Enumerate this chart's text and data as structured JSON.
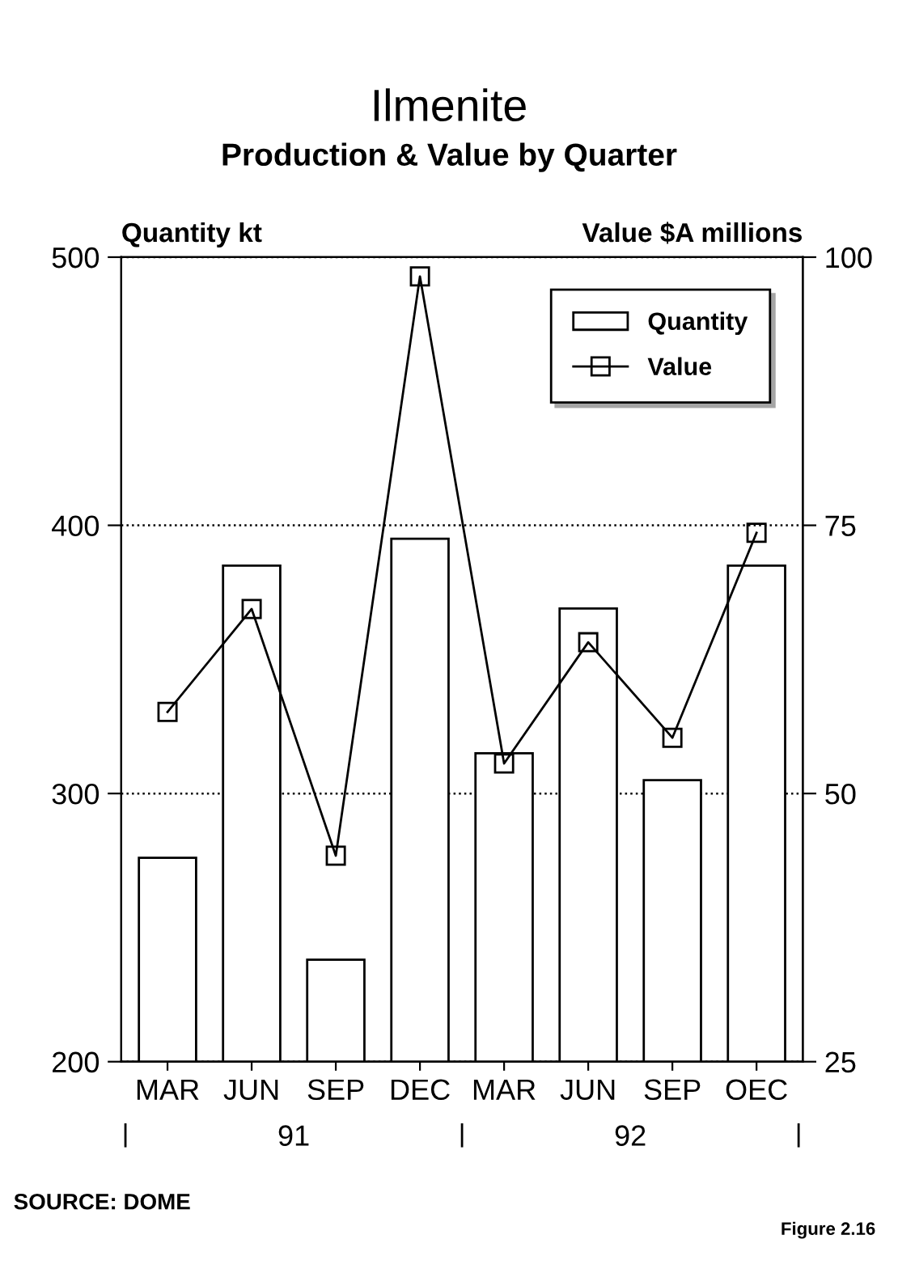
{
  "chart_data": {
    "type": "bar",
    "title": "Ilmenite",
    "subtitle": "Production & Value by Quarter",
    "ylabel": "Quantity kt",
    "y2label": "Value $A millions",
    "categories": [
      "MAR",
      "JUN",
      "SEP",
      "DEC",
      "MAR",
      "JUN",
      "SEP",
      "OEC"
    ],
    "series": [
      {
        "name": "Quantity",
        "color": "#ffffff",
        "values": [
          276,
          385,
          238,
          395,
          315,
          369,
          305,
          385
        ]
      },
      {
        "name": "Value",
        "type": "line",
        "axis": "y2",
        "color": "#000000",
        "marker": "square",
        "values": [
          57.6,
          67.2,
          44.2,
          98.2,
          52.8,
          64.1,
          55.2,
          74.3
        ]
      }
    ],
    "ylim": [
      200,
      500
    ],
    "yticks": [
      200,
      300,
      400,
      500
    ],
    "y2lim": [
      25,
      100
    ],
    "y2ticks": [
      25,
      50,
      75,
      100
    ],
    "grid": "y",
    "legend": "top right",
    "annotations": [
      "91",
      "92",
      "SOURCE: DOME",
      "Figure 2.16"
    ]
  }
}
